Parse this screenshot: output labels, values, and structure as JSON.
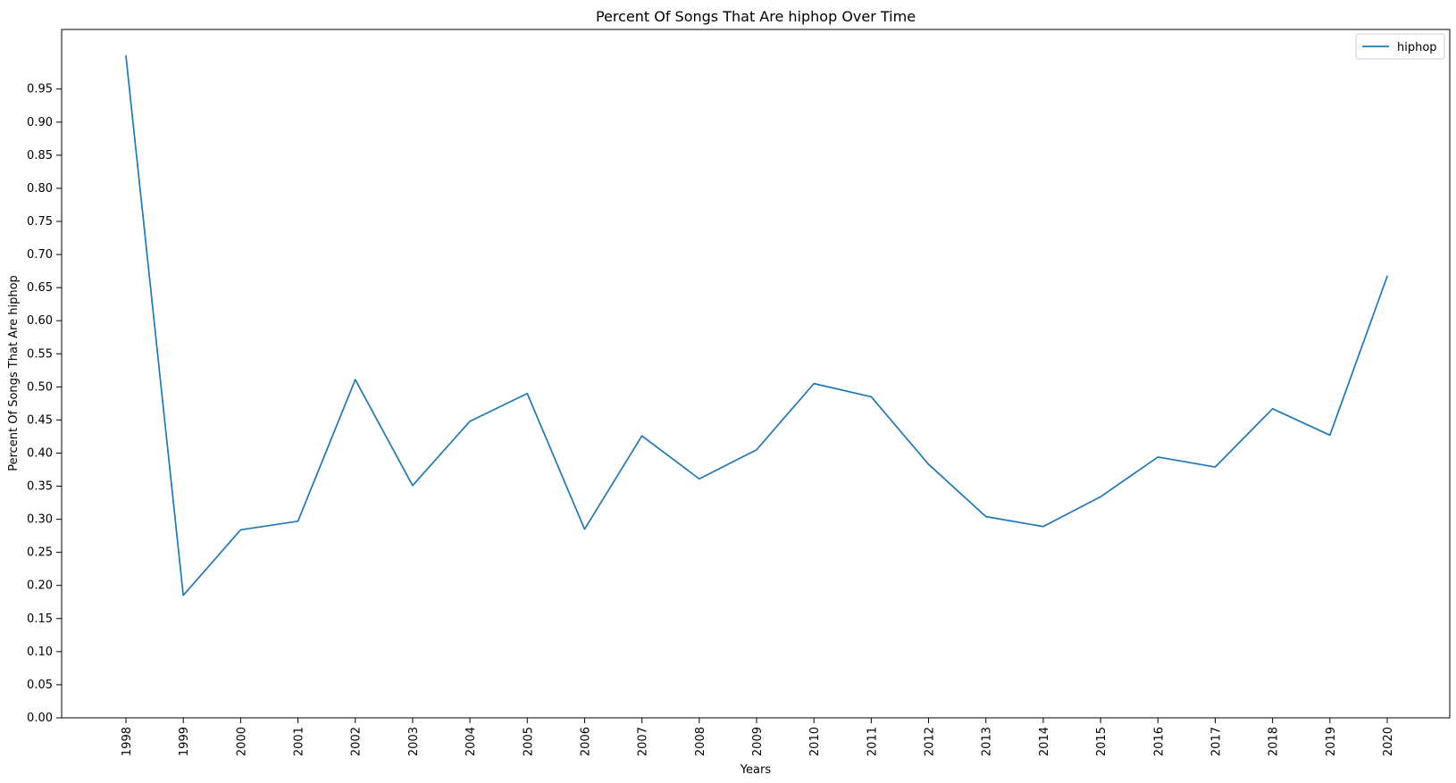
{
  "chart_data": {
    "type": "line",
    "title": "Percent Of Songs That Are hiphop Over Time",
    "xlabel": "Years",
    "ylabel": "Percent Of Songs That Are hiphop",
    "x": [
      "1998",
      "1999",
      "2000",
      "2001",
      "2002",
      "2003",
      "2004",
      "2005",
      "2006",
      "2007",
      "2008",
      "2009",
      "2010",
      "2011",
      "2012",
      "2013",
      "2014",
      "2015",
      "2016",
      "2017",
      "2018",
      "2019",
      "2020"
    ],
    "series": [
      {
        "name": "hiphop",
        "color": "#1f77b4",
        "values": [
          1.0,
          0.185,
          0.284,
          0.297,
          0.511,
          0.351,
          0.448,
          0.49,
          0.285,
          0.426,
          0.361,
          0.405,
          0.505,
          0.485,
          0.383,
          0.304,
          0.289,
          0.334,
          0.394,
          0.379,
          0.467,
          0.427,
          0.667
        ]
      }
    ],
    "yticks": [
      "0.00",
      "0.05",
      "0.10",
      "0.15",
      "0.20",
      "0.25",
      "0.30",
      "0.35",
      "0.40",
      "0.45",
      "0.50",
      "0.55",
      "0.60",
      "0.65",
      "0.70",
      "0.75",
      "0.80",
      "0.85",
      "0.90",
      "0.95"
    ],
    "ylim": [
      0,
      1.04
    ],
    "grid": false,
    "legend_position": "top-right",
    "x_tick_rotation": "vertical"
  }
}
